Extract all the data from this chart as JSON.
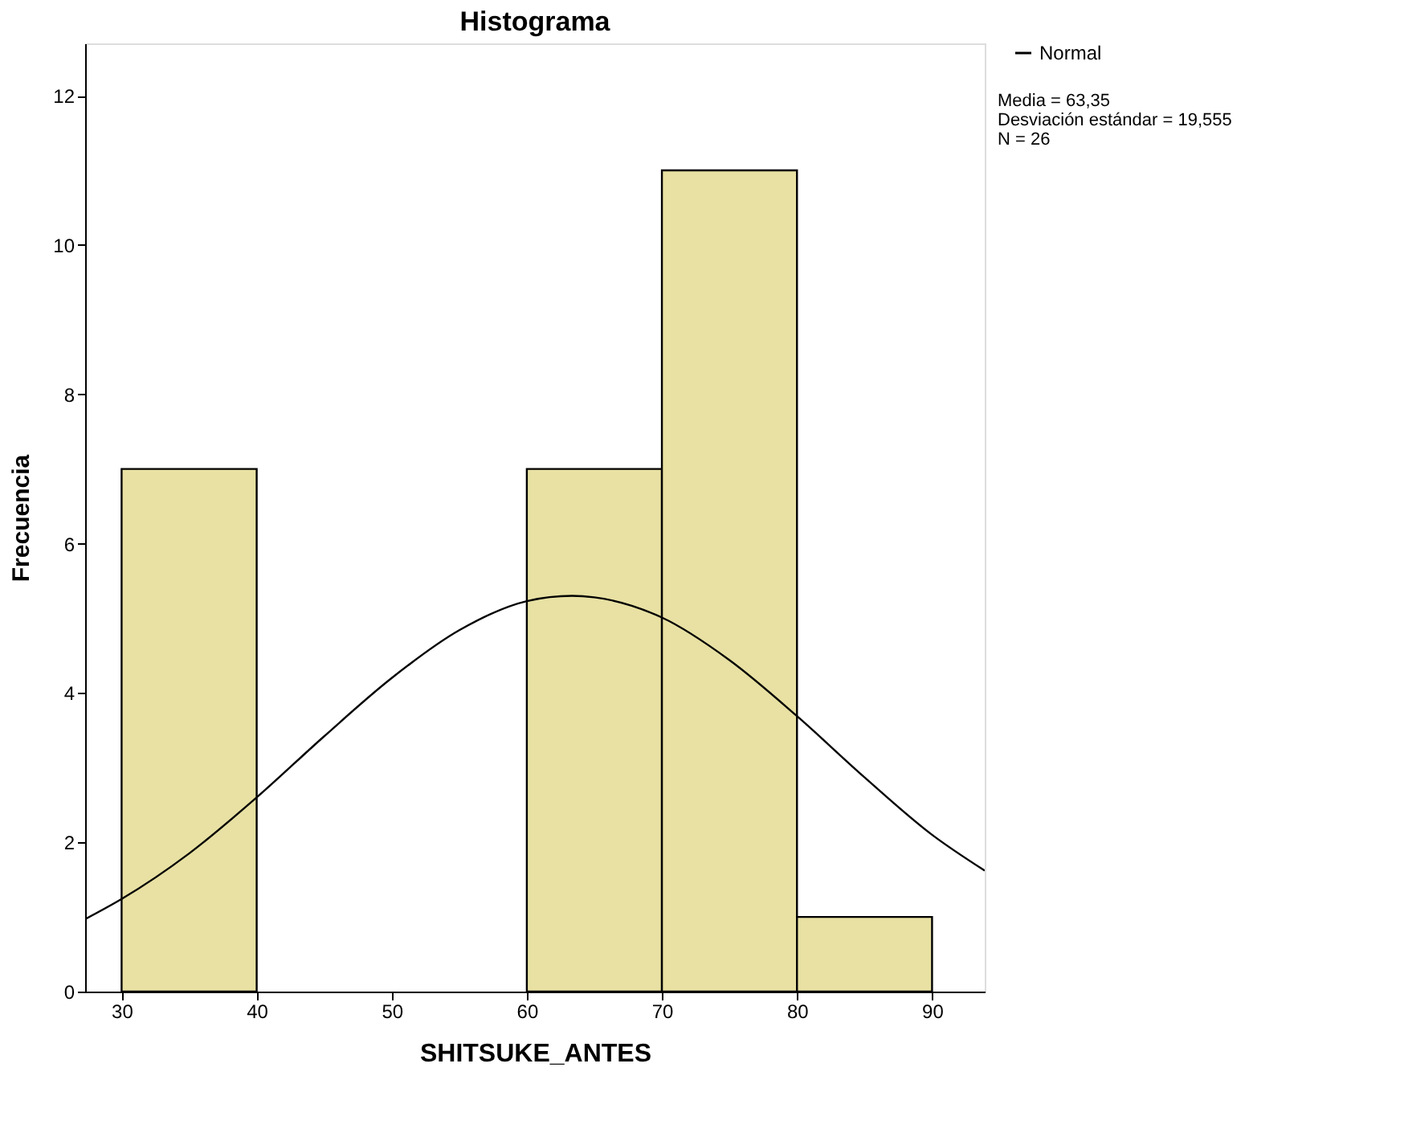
{
  "chart_data": {
    "type": "histogram",
    "title": "Histograma",
    "xlabel": "SHITSUKE_ANTES",
    "ylabel": "Frecuencia",
    "bins": [
      30,
      40,
      50,
      60,
      70,
      80,
      90
    ],
    "values": [
      7,
      0,
      0,
      7,
      11,
      1
    ],
    "color": "#e8e1a3",
    "series": [
      {
        "name": "Normal",
        "type": "line",
        "color": "#000000",
        "x": [
          27.3,
          30,
          35,
          40,
          45,
          50,
          55,
          60,
          63.35,
          65,
          70,
          75,
          80,
          85,
          90,
          93.9
        ],
        "values": [
          0.97,
          1.24,
          1.85,
          2.6,
          3.42,
          4.2,
          4.84,
          5.23,
          5.3,
          5.28,
          5.01,
          4.44,
          3.69,
          2.87,
          2.1,
          1.62
        ]
      }
    ],
    "xlim": [
      27.3,
      93.9
    ],
    "ylim": [
      0,
      12.7
    ],
    "xticks": [
      30,
      40,
      50,
      60,
      70,
      80,
      90
    ],
    "yticks": [
      0,
      2,
      4,
      6,
      8,
      10,
      12
    ],
    "grid": false,
    "legend": "top right",
    "marker": "none",
    "line_style": "solid",
    "annotations": [
      "Media = 63,35",
      "Desviación estándar = 19,555",
      "N = 26"
    ]
  }
}
